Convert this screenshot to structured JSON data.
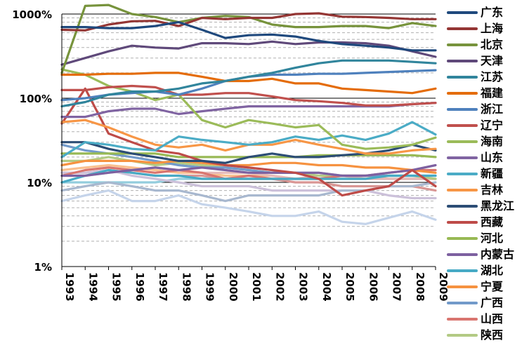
{
  "chart_data": {
    "type": "line",
    "title": "",
    "xlabel": "",
    "ylabel": "",
    "y_scale": "log",
    "ylim": [
      1,
      1000
    ],
    "y_ticks": [
      "1%",
      "10%",
      "100%",
      "1000%"
    ],
    "grid": "horizontal major and minor",
    "legend_position": "right",
    "x": [
      "1993",
      "1994",
      "1995",
      "1996",
      "1997",
      "1998",
      "1999",
      "2000",
      "2001",
      "2002",
      "2003",
      "2004",
      "2005",
      "2006",
      "2007",
      "2008",
      "2009"
    ],
    "series": [
      {
        "name": "广东",
        "color": "#1f497d",
        "values": [
          700,
          700,
          680,
          680,
          720,
          800,
          650,
          520,
          560,
          570,
          540,
          480,
          440,
          420,
          400,
          370,
          370
        ]
      },
      {
        "name": "上海",
        "color": "#943634",
        "values": [
          650,
          640,
          750,
          820,
          830,
          720,
          900,
          870,
          900,
          900,
          1000,
          1020,
          930,
          920,
          900,
          870,
          870
        ]
      },
      {
        "name": "北京",
        "color": "#77933c",
        "values": [
          200,
          1250,
          1280,
          1000,
          920,
          800,
          900,
          950,
          920,
          750,
          700,
          700,
          720,
          720,
          680,
          780,
          720
        ]
      },
      {
        "name": "天津",
        "color": "#5f497a",
        "values": [
          250,
          300,
          360,
          420,
          400,
          390,
          450,
          450,
          440,
          470,
          440,
          460,
          460,
          450,
          420,
          360,
          310
        ]
      },
      {
        "name": "江苏",
        "color": "#31859c",
        "values": [
          80,
          90,
          110,
          120,
          120,
          130,
          150,
          160,
          180,
          200,
          230,
          260,
          280,
          280,
          280,
          270,
          260
        ]
      },
      {
        "name": "福建",
        "color": "#e46c0a",
        "values": [
          190,
          190,
          195,
          195,
          200,
          200,
          180,
          160,
          160,
          170,
          150,
          150,
          130,
          125,
          120,
          115,
          130
        ]
      },
      {
        "name": "浙江",
        "color": "#4f81bd",
        "values": [
          95,
          100,
          110,
          115,
          120,
          110,
          130,
          160,
          180,
          190,
          190,
          195,
          195,
          200,
          205,
          210,
          215
        ]
      },
      {
        "name": "辽宁",
        "color": "#c0504d",
        "values": [
          125,
          125,
          135,
          140,
          135,
          110,
          110,
          115,
          115,
          105,
          95,
          92,
          88,
          82,
          82,
          85,
          88
        ]
      },
      {
        "name": "海南",
        "color": "#9bbb59",
        "values": [
          220,
          190,
          140,
          120,
          95,
          110,
          55,
          45,
          55,
          50,
          45,
          48,
          28,
          25,
          26,
          28,
          34
        ]
      },
      {
        "name": "山东",
        "color": "#8064a2",
        "values": [
          60,
          60,
          70,
          75,
          75,
          65,
          70,
          75,
          80,
          80,
          80,
          80,
          80,
          80,
          80,
          85,
          88
        ]
      },
      {
        "name": "新疆",
        "color": "#4bacc6",
        "values": [
          20,
          30,
          28,
          25,
          24,
          35,
          32,
          30,
          28,
          30,
          35,
          32,
          36,
          32,
          38,
          52,
          37
        ]
      },
      {
        "name": "吉林",
        "color": "#f79646",
        "values": [
          52,
          55,
          45,
          35,
          28,
          26,
          28,
          24,
          28,
          28,
          32,
          28,
          25,
          22,
          22,
          24,
          25
        ]
      },
      {
        "name": "黑龙江",
        "color": "#2c4d75",
        "values": [
          30,
          30,
          25,
          22,
          20,
          18,
          18,
          17,
          20,
          22,
          20,
          20,
          21,
          22,
          24,
          28,
          24
        ]
      },
      {
        "name": "西藏",
        "color": "#be4b48",
        "values": [
          50,
          130,
          38,
          30,
          24,
          22,
          18,
          16,
          15,
          14,
          13,
          11,
          7,
          8,
          9,
          14,
          9
        ]
      },
      {
        "name": "河北",
        "color": "#98b954",
        "values": [
          22,
          22,
          22,
          22,
          22,
          20,
          20,
          20,
          20,
          20,
          20,
          21,
          21,
          21,
          21,
          21,
          20
        ]
      },
      {
        "name": "内蒙古",
        "color": "#7d60a0",
        "values": [
          12,
          12,
          13,
          14,
          15,
          14,
          15,
          14,
          13,
          13,
          13,
          13,
          12,
          12,
          13,
          14,
          16
        ]
      },
      {
        "name": "湖北",
        "color": "#46aac5",
        "values": [
          10,
          12,
          14,
          13,
          12,
          12,
          11,
          11,
          11,
          11,
          11,
          11,
          11,
          11,
          12,
          12,
          12
        ]
      },
      {
        "name": "宁夏",
        "color": "#f69240",
        "values": [
          16,
          18,
          18,
          18,
          17,
          18,
          17,
          16,
          16,
          17,
          17,
          16,
          16,
          15,
          15,
          14,
          13
        ]
      },
      {
        "name": "广西",
        "color": "#729aca",
        "values": [
          28,
          24,
          22,
          20,
          18,
          16,
          15,
          15,
          14,
          13,
          13,
          13,
          12,
          12,
          12,
          12,
          12
        ]
      },
      {
        "name": "山西",
        "color": "#d9756f",
        "values": [
          12,
          14,
          15,
          14,
          13,
          14,
          13,
          11,
          12,
          11,
          11,
          11,
          12,
          12,
          13,
          14,
          14
        ]
      },
      {
        "name": "陕西",
        "color": "#b3ca84",
        "values": [
          18,
          18,
          20,
          18,
          16,
          17,
          16,
          15,
          14,
          13,
          13,
          12,
          12,
          12,
          12,
          12,
          11
        ]
      },
      {
        "name": "",
        "color": "#a8b8cf",
        "values": [
          8,
          9,
          10,
          9,
          8,
          8,
          7,
          6,
          7,
          7,
          7,
          7,
          8,
          8,
          9,
          9,
          10
        ]
      },
      {
        "name": "",
        "color": "#c5d4ea",
        "values": [
          6,
          7,
          8,
          6,
          6,
          7,
          5.5,
          5,
          4.5,
          4,
          4,
          4.5,
          3.4,
          3.2,
          3.8,
          4.5,
          3.6
        ]
      },
      {
        "name": "",
        "color": "#e6b9b8",
        "values": [
          12,
          12,
          13,
          14,
          15,
          14,
          13,
          13,
          13,
          12,
          11,
          12,
          12,
          11,
          11,
          11,
          11
        ]
      },
      {
        "name": "",
        "color": "#ccc1da",
        "values": [
          13,
          13,
          14,
          12,
          11,
          10,
          9,
          9,
          9,
          8,
          8,
          8,
          8,
          8,
          7,
          6.5,
          6.5
        ]
      },
      {
        "name": "",
        "color": "#fac090",
        "values": [
          14,
          15,
          16,
          15,
          14,
          13,
          13,
          12,
          12,
          12,
          11,
          11,
          12,
          12,
          11,
          11,
          11
        ]
      },
      {
        "name": "",
        "color": "#d99694",
        "values": [
          13,
          13,
          14,
          13,
          12,
          12,
          12,
          11,
          11,
          11,
          10,
          10,
          9,
          9,
          9,
          9,
          8
        ]
      },
      {
        "name": "",
        "color": "#93cddd",
        "values": [
          10,
          10,
          10,
          10,
          10,
          11,
          11,
          11,
          11,
          11,
          11,
          11,
          11,
          11,
          11,
          11,
          11
        ]
      }
    ]
  }
}
